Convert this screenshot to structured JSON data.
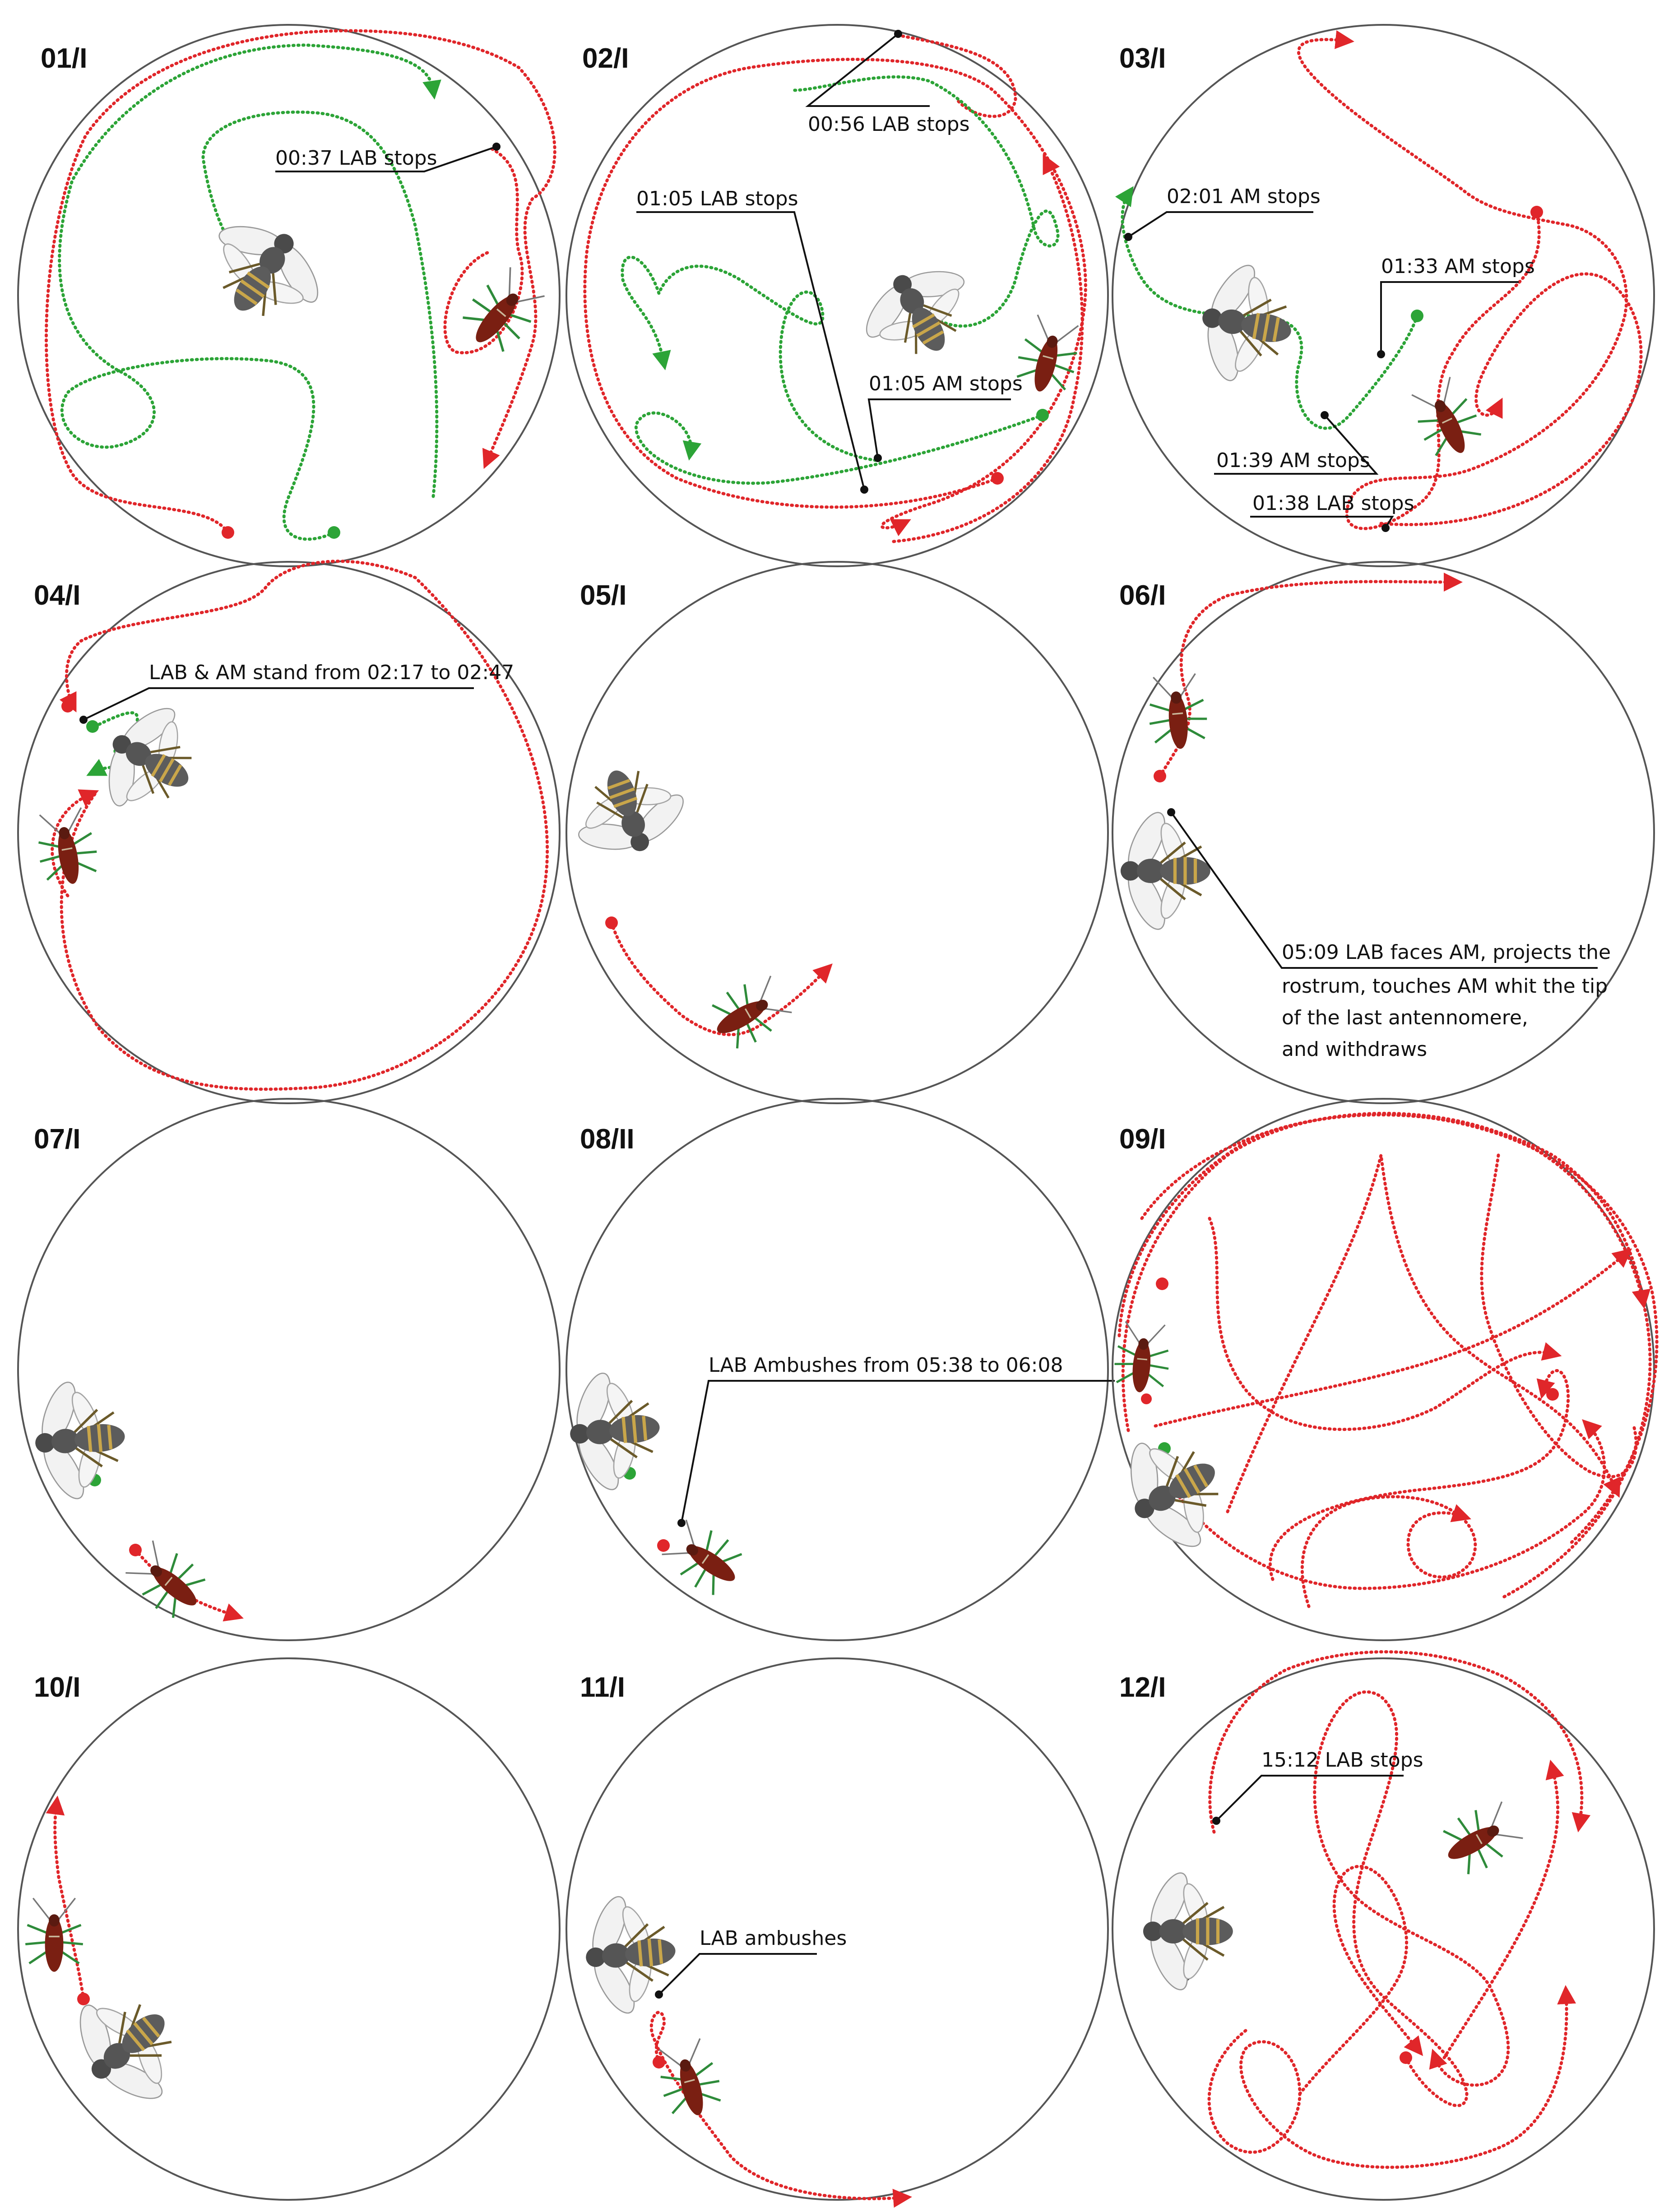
{
  "colors": {
    "lab": "#e0262a",
    "am": "#2ca437",
    "arena": "#555555",
    "text": "#111111"
  },
  "panels": [
    {
      "label": "01/I",
      "annotations": [
        "00:37 LAB stops"
      ]
    },
    {
      "label": "02/I",
      "annotations": [
        "00:56 LAB stops",
        "01:05 LAB stops",
        "01:05 AM stops"
      ]
    },
    {
      "label": "03/I",
      "annotations": [
        "02:01 AM stops",
        "01:33 AM stops",
        "01:39 AM stops",
        "01:38 LAB stops"
      ]
    },
    {
      "label": "04/I",
      "annotations": [
        "LAB & AM stand from 02:17 to 02:47"
      ]
    },
    {
      "label": "05/I",
      "annotations": []
    },
    {
      "label": "06/I",
      "annotations": [
        "05:09 LAB faces AM, projects the",
        "rostrum, touches AM whit the tip",
        "of the last antennomere,",
        "and withdraws"
      ]
    },
    {
      "label": "07/I",
      "annotations": []
    },
    {
      "label": "08/II",
      "annotations": [
        "LAB Ambushes from 05:38 to 06:08"
      ]
    },
    {
      "label": "09/I",
      "annotations": []
    },
    {
      "label": "10/I",
      "annotations": []
    },
    {
      "label": "11/I",
      "annotations": [
        "LAB ambushes"
      ]
    },
    {
      "label": "12/I",
      "annotations": [
        "15:12 LAB stops"
      ]
    }
  ]
}
